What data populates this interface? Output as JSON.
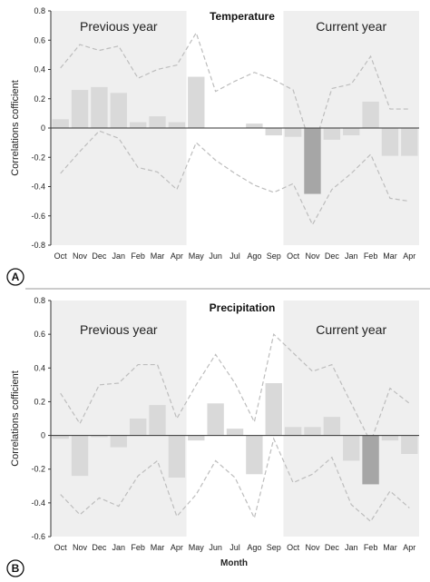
{
  "colors": {
    "shade": "#efefef",
    "bar": "#d9d9d9",
    "bar_highlight": "#a6a6a6",
    "confidence_line": "#bdbdbd",
    "axis": "#333333",
    "divider": "#999999"
  },
  "x_axis_label": "Month",
  "chart_data": [
    {
      "type": "bar",
      "panel_letter": "A",
      "title": "Temperature",
      "ylabel": "Correlations cofficient",
      "ylim": [
        -0.8,
        0.8
      ],
      "yticks": [
        "0.8",
        "0.6",
        "0.4",
        "0.2",
        "0",
        "-0.2",
        "-0.4",
        "-0.6",
        "-0.8"
      ],
      "categories": [
        "Oct",
        "Nov",
        "Dec",
        "Jan",
        "Feb",
        "Mar",
        "Apr",
        "May",
        "Jun",
        "Jul",
        "Ago",
        "Sep",
        "Oct",
        "Nov",
        "Dec",
        "Jan",
        "Feb",
        "Mar",
        "Apr"
      ],
      "regions": [
        {
          "label": "Previous year",
          "from_index": 0,
          "to_index": 6
        },
        {
          "label": "Current year",
          "from_index": 12,
          "to_index": 18
        }
      ],
      "values": [
        0.06,
        0.26,
        0.28,
        0.24,
        0.04,
        0.08,
        0.04,
        0.35,
        0.0,
        0.0,
        0.03,
        -0.05,
        -0.06,
        -0.45,
        -0.08,
        -0.05,
        0.18,
        -0.19,
        -0.19
      ],
      "highlighted_index": 13,
      "upper_confidence": [
        0.41,
        0.57,
        0.53,
        0.56,
        0.34,
        0.4,
        0.43,
        0.65,
        0.25,
        0.32,
        0.38,
        0.33,
        0.26,
        -0.16,
        0.27,
        0.3,
        0.49,
        0.13,
        0.13
      ],
      "lower_confidence": [
        -0.31,
        -0.16,
        -0.02,
        -0.07,
        -0.27,
        -0.3,
        -0.42,
        -0.1,
        -0.22,
        -0.31,
        -0.39,
        -0.44,
        -0.38,
        -0.66,
        -0.42,
        -0.31,
        -0.18,
        -0.48,
        -0.5
      ]
    },
    {
      "type": "bar",
      "panel_letter": "B",
      "title": "Precipitation",
      "ylabel": "Correlations cofficient",
      "ylim": [
        -0.6,
        0.8
      ],
      "yticks": [
        "0.8",
        "0.6",
        "0.4",
        "0.2",
        "0",
        "-0.2",
        "-0.4",
        "-0.6"
      ],
      "categories": [
        "Oct",
        "Nov",
        "Dec",
        "Jan",
        "Feb",
        "Mar",
        "Apr",
        "May",
        "Jun",
        "Jul",
        "Ago",
        "Sep",
        "Oct",
        "Nov",
        "Dec",
        "Jan",
        "Feb",
        "Mar",
        "Apr"
      ],
      "regions": [
        {
          "label": "Previous year",
          "from_index": 0,
          "to_index": 6
        },
        {
          "label": "Current year",
          "from_index": 12,
          "to_index": 18
        }
      ],
      "values": [
        -0.02,
        -0.24,
        -0.01,
        -0.07,
        0.1,
        0.18,
        -0.25,
        -0.03,
        0.19,
        0.04,
        -0.23,
        0.31,
        0.05,
        0.05,
        0.11,
        -0.15,
        -0.29,
        -0.03,
        -0.11
      ],
      "highlighted_index": 16,
      "upper_confidence": [
        0.25,
        0.07,
        0.3,
        0.31,
        0.42,
        0.42,
        0.1,
        0.3,
        0.48,
        0.31,
        0.08,
        0.6,
        0.49,
        0.38,
        0.42,
        0.19,
        -0.04,
        0.28,
        0.19
      ],
      "lower_confidence": [
        -0.35,
        -0.47,
        -0.37,
        -0.42,
        -0.24,
        -0.15,
        -0.48,
        -0.35,
        -0.15,
        -0.25,
        -0.49,
        -0.02,
        -0.28,
        -0.23,
        -0.13,
        -0.41,
        -0.51,
        -0.33,
        -0.43
      ]
    }
  ]
}
